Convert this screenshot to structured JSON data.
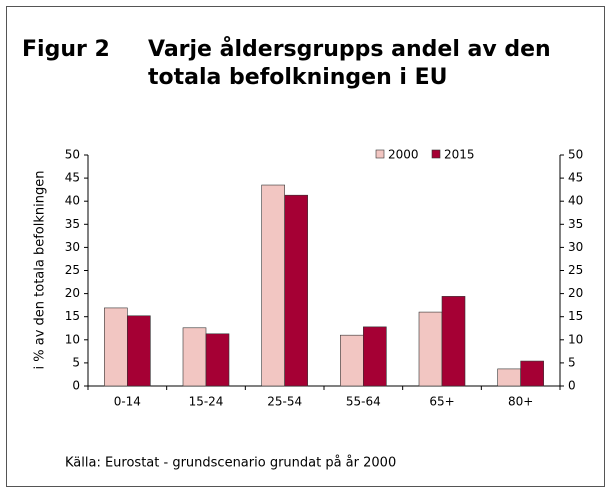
{
  "chart_data": {
    "type": "bar",
    "figure_label": "Figur 2",
    "title": [
      "Varje åldersgrupps andel av den",
      "totala befolkningen i EU"
    ],
    "ylabel": "i % av den totala befolkningen",
    "source": "Källa: Eurostat -  grundscenario grundat på år 2000",
    "categories": [
      "0-14",
      "15-24",
      "25-54",
      "55-64",
      "65+",
      "80+"
    ],
    "series": [
      {
        "name": "2000",
        "color": "#f2c6c2",
        "values": [
          16.9,
          12.6,
          43.5,
          11.0,
          16.0,
          3.7
        ]
      },
      {
        "name": "2015",
        "color": "#a50034",
        "values": [
          15.2,
          11.3,
          41.3,
          12.8,
          19.4,
          5.4
        ]
      }
    ],
    "ylim": [
      0,
      50
    ],
    "yticks": [
      0,
      5,
      10,
      15,
      20,
      25,
      30,
      35,
      40,
      45,
      50
    ],
    "y2lim": [
      0,
      50
    ],
    "y2ticks": [
      0,
      5,
      10,
      15,
      20,
      25,
      30,
      35,
      40,
      45,
      50
    ],
    "legend": "top-right",
    "grid": false
  }
}
